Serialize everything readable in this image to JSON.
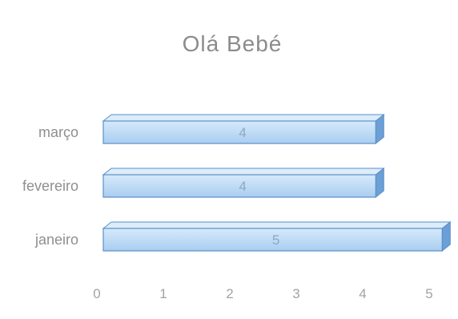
{
  "chart_data": {
    "type": "bar",
    "orientation": "horizontal",
    "style": "3d",
    "title": "Olá Bebé",
    "categories": [
      "março",
      "fevereiro",
      "janeiro"
    ],
    "values": [
      4.1,
      4.1,
      5.1
    ],
    "data_labels": [
      "4",
      "4",
      "5"
    ],
    "x_ticks": [
      "0",
      "1",
      "2",
      "3",
      "4",
      "5"
    ],
    "xlim": [
      0,
      5.2
    ],
    "grid": false,
    "legend": "none",
    "colors": {
      "bar_front": "#c8e2f8",
      "bar_front_dark": "#a9cdf0",
      "bar_top": "#dcecfa",
      "bar_side": "#6b9fd6",
      "bar_edge": "#5a90c9"
    }
  }
}
